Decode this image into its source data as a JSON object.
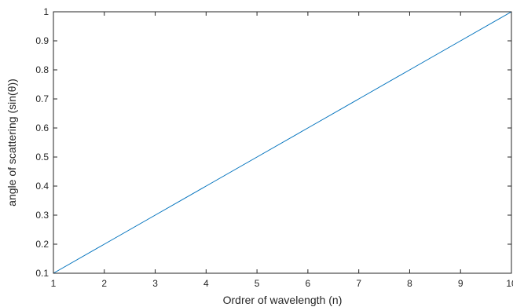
{
  "chart_data": {
    "type": "line",
    "title": "",
    "xlabel": "Ordrer of wavelength (n)",
    "ylabel": "angle of scattering (sin(θ))",
    "xlim": [
      1,
      10
    ],
    "ylim": [
      0.1,
      1
    ],
    "xticks": [
      1,
      2,
      3,
      4,
      5,
      6,
      7,
      8,
      9,
      10
    ],
    "yticks": [
      0.1,
      0.2,
      0.3,
      0.4,
      0.5,
      0.6,
      0.7,
      0.8,
      0.9,
      1
    ],
    "xtick_labels": [
      "1",
      "2",
      "3",
      "4",
      "5",
      "6",
      "7",
      "8",
      "9",
      "10"
    ],
    "ytick_labels": [
      "0.1",
      "0.2",
      "0.3",
      "0.4",
      "0.5",
      "0.6",
      "0.7",
      "0.8",
      "0.9",
      "1"
    ],
    "grid": false,
    "legend": false,
    "series": [
      {
        "color": "#0072BD",
        "x": [
          1,
          2,
          3,
          4,
          5,
          6,
          7,
          8,
          9,
          10
        ],
        "y": [
          0.1,
          0.2,
          0.3,
          0.4,
          0.5,
          0.6,
          0.7,
          0.8,
          0.9,
          1.0
        ]
      }
    ]
  }
}
